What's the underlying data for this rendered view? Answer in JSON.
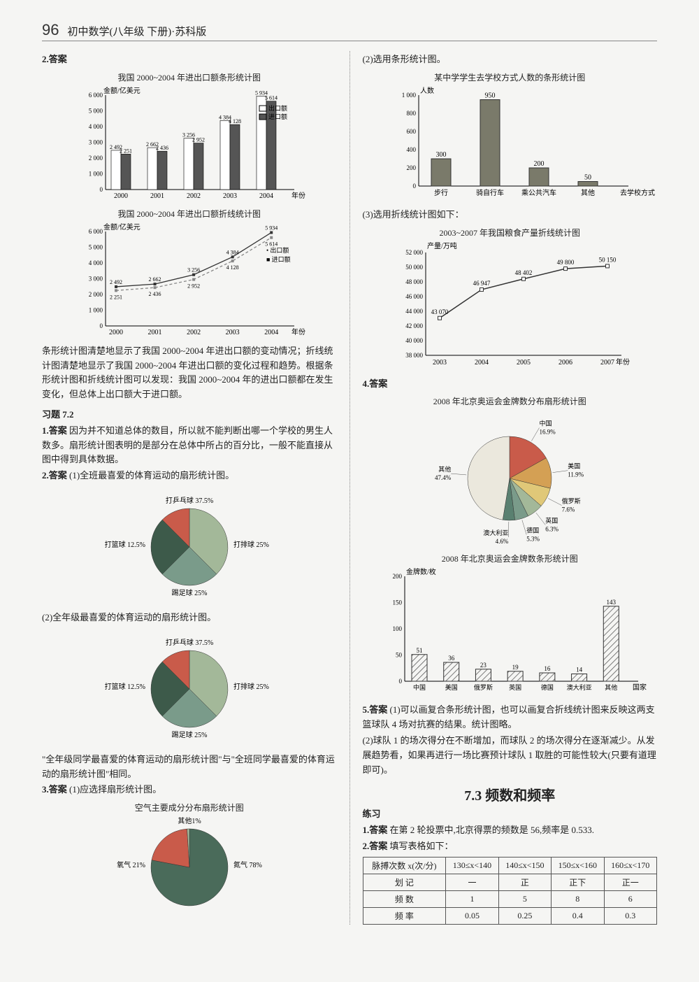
{
  "header": {
    "page_num": "96",
    "title": "初中数学(八年级 下册)·苏科版"
  },
  "left": {
    "q2_label": "2.答案",
    "bar_chart": {
      "title": "我国 2000~2004 年进出口额条形统计图",
      "y_label": "金额/亿美元",
      "x_label": "年份",
      "years": [
        "2000",
        "2001",
        "2002",
        "2003",
        "2004"
      ],
      "export": [
        2492,
        2662,
        3256,
        4384,
        5934
      ],
      "import": [
        2251,
        2436,
        2952,
        4128,
        5614
      ],
      "export_color": "#ffffff",
      "import_color": "#555555",
      "legend": [
        "出口额",
        "进口额"
      ],
      "y_max": 6000,
      "y_step": 1000
    },
    "line_chart": {
      "title": "我国 2000~2004 年进出口额折线统计图",
      "y_label": "金额/亿美元",
      "x_label": "年份",
      "years": [
        "2000",
        "2001",
        "2002",
        "2003",
        "2004"
      ],
      "export": [
        2492,
        2662,
        3256,
        4384,
        5934
      ],
      "import": [
        2251,
        2436,
        2952,
        4128,
        5614
      ],
      "export_color": "#333333",
      "import_color": "#888888",
      "legend": [
        "出口额",
        "进口额"
      ],
      "y_max": 6000,
      "y_step": 1000
    },
    "q2_text": "条形统计图清楚地显示了我国 2000~2004 年进出口额的变动情况；折线统计图清楚地显示了我国 2000~2004 年进出口额的变化过程和趋势。根据条形统计图和折线统计图可以发现：我国 2000~2004 年的进出口额都在发生变化，但总体上出口额大于进口额。",
    "sec72": "习题 7.2",
    "q72_1_label": "1.答案",
    "q72_1_text": "因为并不知道总体的数目，所以就不能判断出哪一个学校的男生人数多。扇形统计图表明的是部分在总体中所占的百分比，一般不能直接从图中得到具体数据。",
    "q72_2_label": "2.答案",
    "q72_2_a": "(1)全班最喜爱的体育运动的扇形统计图。",
    "pie_sports": {
      "title_top": "打乒乓球",
      "slices": [
        {
          "label": "打乒乓球",
          "pct": 37.5,
          "color": "#a3b899"
        },
        {
          "label": "打排球",
          "pct": 25,
          "color": "#7a9b8a"
        },
        {
          "label": "踢足球",
          "pct": 25,
          "color": "#3d5a4a"
        },
        {
          "label": "打篮球",
          "pct": 12.5,
          "color": "#c95b4a"
        }
      ],
      "labels": {
        "top": "打乒乓球 37.5%",
        "right": "打排球 25%",
        "bottom": "踢足球 25%",
        "left": "打篮球 12.5%"
      }
    },
    "q72_2_b": "(2)全年级最喜爱的体育运动的扇形统计图。",
    "q72_2_note": "\"全年级同学最喜爱的体育运动的扇形统计图\"与\"全班同学最喜爱的体育运动的扇形统计图\"相同。",
    "q72_3_label": "3.答案",
    "q72_3_a": "(1)应选择扇形统计图。",
    "pie_air": {
      "title": "空气主要成分分布扇形统计图",
      "slices": [
        {
          "label": "氮气",
          "pct": 78,
          "color": "#4a6b5a"
        },
        {
          "label": "氧气",
          "pct": 21,
          "color": "#c95b4a"
        },
        {
          "label": "其他",
          "pct": 1,
          "color": "#a3b899"
        }
      ],
      "labels": {
        "right": "氮气 78%",
        "left": "氧气 21%",
        "top": "其他1%"
      }
    }
  },
  "right": {
    "q3_2": "(2)选用条形统计图。",
    "transport_chart": {
      "title": "某中学学生去学校方式人数的条形统计图",
      "y_label": "人数",
      "x_label": "去学校方式",
      "cats": [
        "步行",
        "骑自行车",
        "乘公共汽车",
        "其他"
      ],
      "vals": [
        300,
        950,
        200,
        50
      ],
      "color": "#7a7a6a",
      "y_max": 1000,
      "y_step": 200
    },
    "q3_3": "(3)选用折线统计图如下：",
    "grain_chart": {
      "title": "2003~2007 年我国粮食产量折线统计图",
      "y_label": "产量/万吨",
      "x_label": "年份",
      "years": [
        "2003",
        "2004",
        "2005",
        "2006",
        "2007"
      ],
      "vals": [
        43070,
        46947,
        48402,
        49800,
        50150
      ],
      "y_min": 38000,
      "y_max": 52000,
      "y_step": 2000,
      "color": "#333333"
    },
    "q4_label": "4.答案",
    "medal_pie": {
      "title": "2008 年北京奥运会金牌数分布扇形统计图",
      "slices": [
        {
          "label": "中国",
          "pct": 16.9,
          "color": "#c95b4a"
        },
        {
          "label": "美国",
          "pct": 11.9,
          "color": "#d4a054"
        },
        {
          "label": "俄罗斯",
          "pct": 7.6,
          "color": "#e0c878"
        },
        {
          "label": "英国",
          "pct": 6.3,
          "color": "#a3b899"
        },
        {
          "label": "德国",
          "pct": 5.3,
          "color": "#7a9b8a"
        },
        {
          "label": "澳大利亚",
          "pct": 4.6,
          "color": "#5a8070"
        },
        {
          "label": "其他",
          "pct": 47.4,
          "color": "#ebe8dd"
        }
      ]
    },
    "medal_bar": {
      "title": "2008 年北京奥运会金牌数条形统计图",
      "y_label": "金牌数/枚",
      "x_label": "国家",
      "cats": [
        "中国",
        "美国",
        "俄罗斯",
        "英国",
        "德国",
        "澳大利亚",
        "其他"
      ],
      "vals": [
        51,
        36,
        23,
        19,
        16,
        14,
        143
      ],
      "y_max": 200,
      "y_step": 50,
      "color": "#ffffff",
      "hatch": true
    },
    "q5_label": "5.答案",
    "q5_text1": "(1)可以画复合条形统计图，也可以画复合折线统计图来反映这两支篮球队 4 场对抗赛的结果。统计图略。",
    "q5_text2": "(2)球队 1 的场次得分在不断增加，而球队 2 的场次得分在逐渐减少。从发展趋势看，如果再进行一场比赛预计球队 1 取胜的可能性较大(只要有道理即可)。",
    "sec73_title": "7.3  频数和频率",
    "sec73_sub": "练习",
    "q73_1_label": "1.答案",
    "q73_1_text": "在第 2 轮投票中,北京得票的频数是 56,频率是 0.533.",
    "q73_2_label": "2.答案",
    "q73_2_text": "填写表格如下：",
    "freq_table": {
      "head": [
        "脉搏次数 x(次/分)",
        "130≤x<140",
        "140≤x<150",
        "150≤x<160",
        "160≤x<170"
      ],
      "rows": [
        [
          "划  记",
          "一",
          "正",
          "正下",
          "正一"
        ],
        [
          "频  数",
          "1",
          "5",
          "8",
          "6"
        ],
        [
          "频  率",
          "0.05",
          "0.25",
          "0.4",
          "0.3"
        ]
      ]
    }
  }
}
